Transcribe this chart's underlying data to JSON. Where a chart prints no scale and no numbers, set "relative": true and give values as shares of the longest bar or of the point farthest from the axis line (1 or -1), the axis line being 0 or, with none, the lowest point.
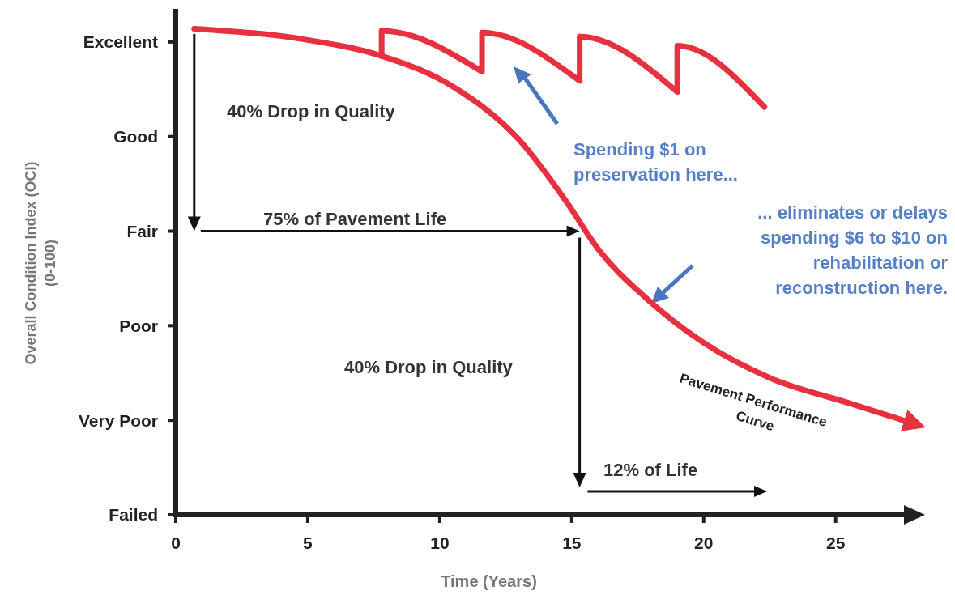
{
  "chart_data": {
    "type": "line",
    "xlabel": "Time (Years)",
    "xlim": [
      0,
      28.2
    ],
    "xticks": [
      0,
      5,
      10,
      15,
      20,
      25
    ],
    "relative": true,
    "series": [
      {
        "name": "Pavement Performance Curve",
        "color": "#e8313f",
        "x": [
          0.7,
          5.0,
          7.8,
          10.5,
          13.0,
          14.8,
          16.0,
          17.9,
          20.0,
          22.5,
          25.5,
          28.0
        ],
        "values": [
          1,
          0.977,
          0.944,
          0.881,
          0.772,
          0.644,
          0.547,
          0.442,
          0.354,
          0.282,
          0.23,
          0.187
        ]
      },
      {
        "color": "#e8313f",
        "x": [
          7.8,
          7.8,
          11.6,
          11.6,
          15.3,
          15.3,
          19.0,
          19.0,
          22.3
        ],
        "values": [
          0.944,
          0.996,
          0.912,
          0.992,
          0.893,
          0.984,
          0.87,
          0.965,
          0.839
        ]
      }
    ],
    "annotations": [
      "40% Drop in Quality",
      "75% of Pavement Life",
      "40% Drop in Quality",
      "12% of Life",
      "Spending $1 on\npreservation here...",
      "... eliminates or delays\nspending $6 to $10 on\nrehabilitation or\nreconstruction here.",
      "Failed",
      "Very Poor",
      "Poor",
      "Fair",
      "Good",
      "Excellent",
      "Overall Condition Index (OCI)\n(0-100)"
    ],
    "legend": false,
    "grid": false,
    "marker": "none",
    "line_style": "solid"
  }
}
